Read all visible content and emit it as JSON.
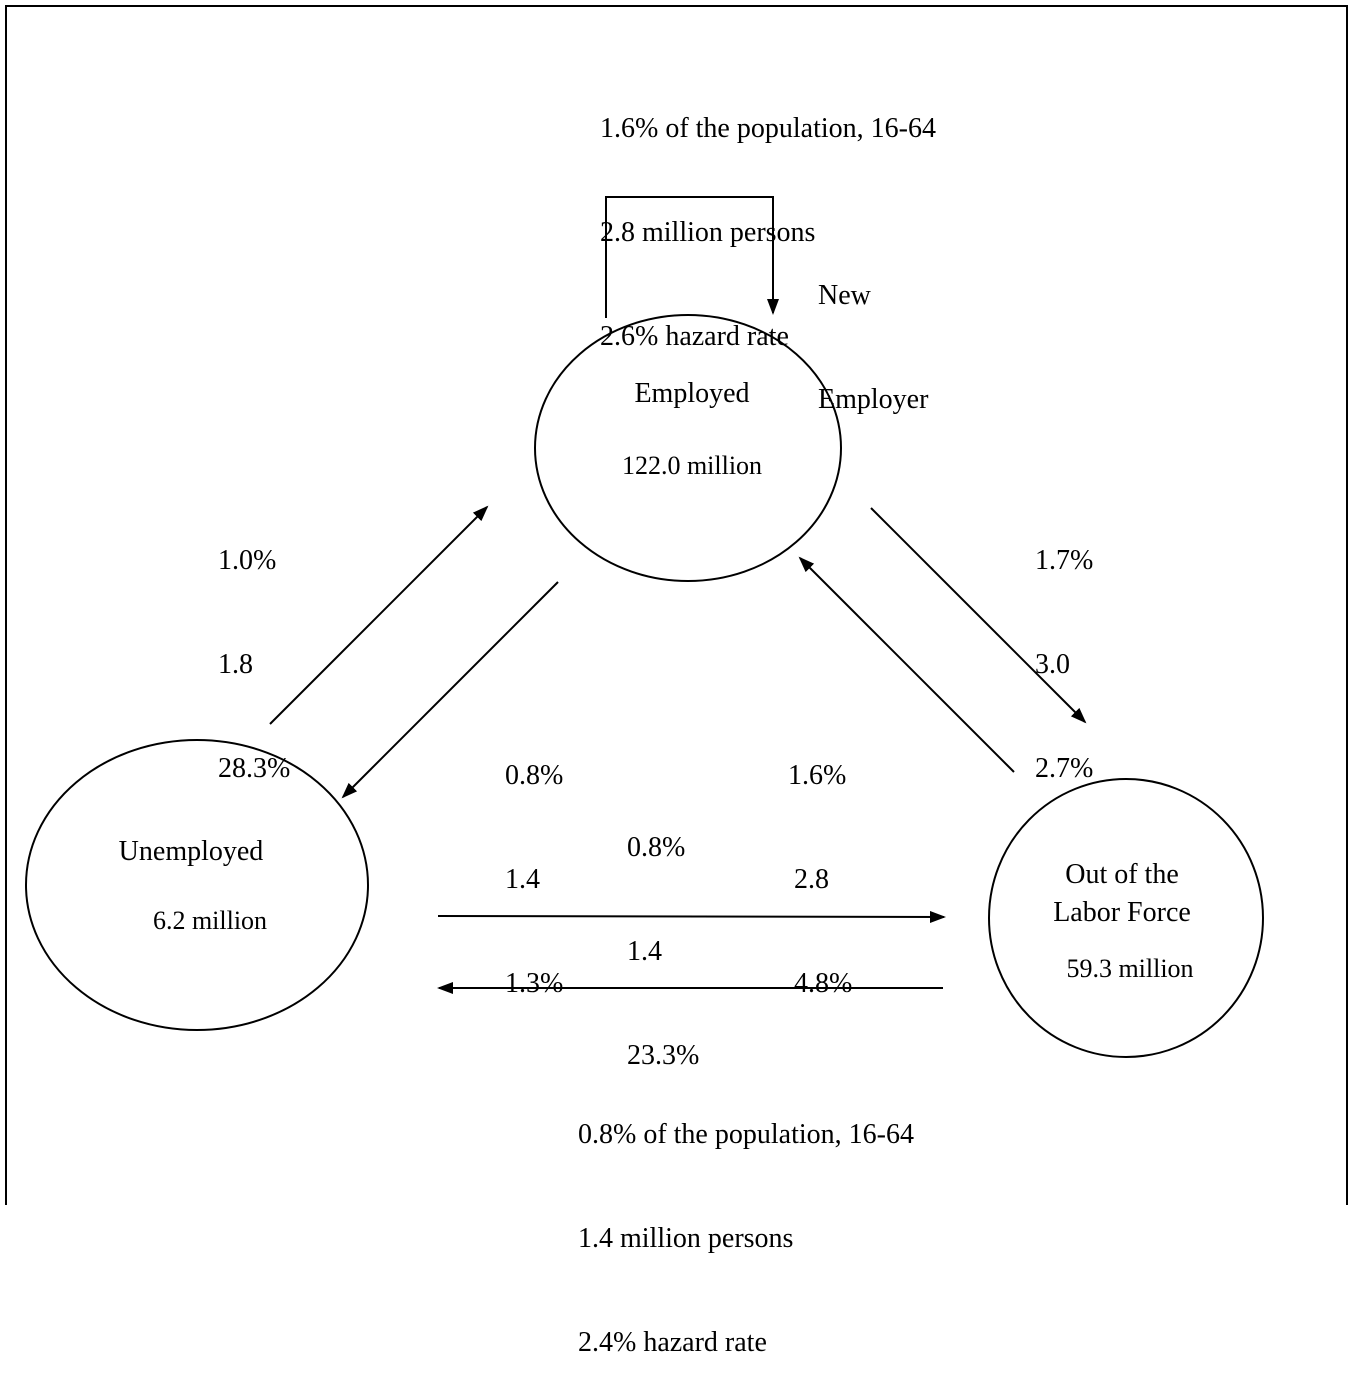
{
  "top_flow": {
    "share": "1.6% of the population, 16-64",
    "persons": "2.8 million persons",
    "hazard": "2.6% hazard rate",
    "loop_label": [
      "New",
      "Employer"
    ]
  },
  "bottom_flow": {
    "share": "0.8% of the population, 16-64",
    "persons": "1.4 million persons",
    "hazard": "2.4% hazard rate"
  },
  "nodes": {
    "employed": {
      "title": "Employed",
      "value": "122.0 million"
    },
    "unemployed": {
      "title": "Unemployed",
      "value": "6.2 million"
    },
    "olf": {
      "title_line1": "Out of the",
      "title_line2": "Labor Force",
      "value": "59.3 million"
    }
  },
  "flows": {
    "unemployed_to_employed": {
      "share": "1.0%",
      "persons": "1.8",
      "hazard": "28.3%"
    },
    "employed_to_olf": {
      "share": "1.7%",
      "persons": "3.0",
      "hazard": "2.7%"
    },
    "employed_to_unemployed": {
      "share": "0.8%",
      "persons": "1.4",
      "hazard": "1.3%"
    },
    "olf_to_employed": {
      "share": "1.6%",
      "persons": "2.8",
      "hazard": "4.8%"
    },
    "unemployed_to_olf": {
      "share": "0.8%",
      "persons": "1.4",
      "hazard": "23.3%"
    }
  }
}
